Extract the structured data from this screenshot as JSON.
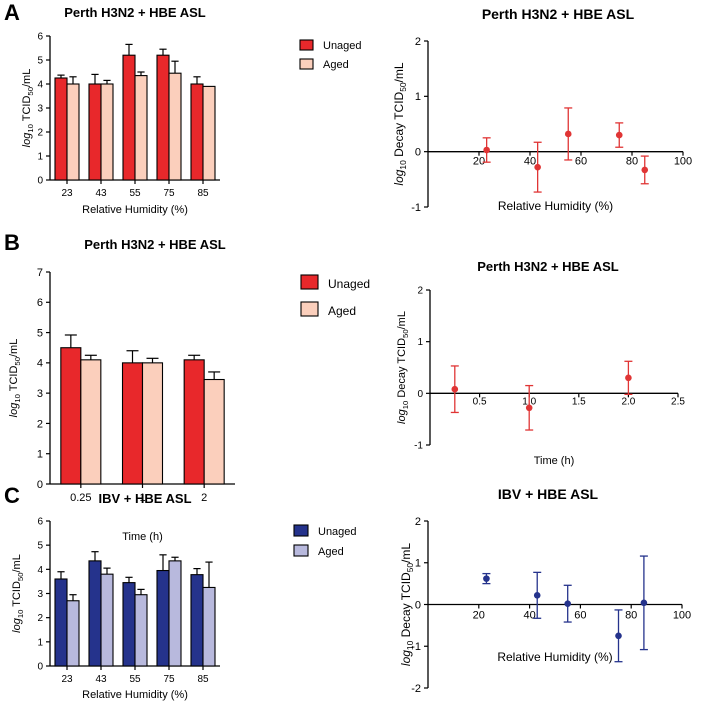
{
  "panel_labels": [
    "A",
    "B",
    "C"
  ],
  "chart_data": [
    {
      "id": "A-bar",
      "type": "bar",
      "title": "Perth H3N2 + HBE ASL",
      "xlabel": "Relative Humidity (%)",
      "ylabel_parts": [
        "log",
        "10",
        " TCID",
        "50",
        "/mL"
      ],
      "categories": [
        "23",
        "43",
        "55",
        "75",
        "85"
      ],
      "ylim": [
        0,
        6
      ],
      "yticks": [
        0,
        1,
        2,
        3,
        4,
        5,
        6
      ],
      "series": [
        {
          "name": "Unaged",
          "color": "#e8282b",
          "values": [
            4.25,
            4.0,
            5.2,
            5.2,
            4.0
          ],
          "errors": [
            0.12,
            0.4,
            0.45,
            0.25,
            0.3
          ]
        },
        {
          "name": "Aged",
          "color": "#fbcfbc",
          "values": [
            4.0,
            4.0,
            4.35,
            4.45,
            3.9
          ],
          "errors": [
            0.3,
            0.15,
            0.15,
            0.5,
            0.0
          ]
        }
      ]
    },
    {
      "id": "A-scatter",
      "type": "scatter",
      "title": "Perth H3N2 + HBE ASL",
      "xlabel": "Relative Humidity (%)",
      "ylabel_parts": [
        "log",
        "10",
        " Decay TCID",
        "50",
        "/mL"
      ],
      "xlim": [
        0,
        100
      ],
      "xticks": [
        20,
        40,
        60,
        80,
        100
      ],
      "ylim": [
        -1,
        2
      ],
      "yticks": [
        -1,
        0,
        1,
        2
      ],
      "color": "#e03535",
      "points": [
        {
          "x": 23,
          "y": 0.03,
          "err": 0.22
        },
        {
          "x": 43,
          "y": -0.28,
          "err": 0.45
        },
        {
          "x": 55,
          "y": 0.32,
          "err": 0.47
        },
        {
          "x": 75,
          "y": 0.3,
          "err": 0.22
        },
        {
          "x": 85,
          "y": -0.33,
          "err": 0.25
        }
      ]
    },
    {
      "id": "B-bar",
      "type": "bar",
      "title": "Perth H3N2 + HBE ASL",
      "xlabel": "Time (h)",
      "ylabel_parts": [
        "log",
        "10",
        " TCID",
        "50",
        "/mL"
      ],
      "categories": [
        "0.25",
        "1",
        "2"
      ],
      "ylim": [
        0,
        7
      ],
      "yticks": [
        0,
        1,
        2,
        3,
        4,
        5,
        6,
        7
      ],
      "series": [
        {
          "name": "Unaged",
          "color": "#e8282b",
          "values": [
            4.5,
            4.0,
            4.1
          ],
          "errors": [
            0.42,
            0.4,
            0.15
          ]
        },
        {
          "name": "Aged",
          "color": "#fbcfbc",
          "values": [
            4.1,
            4.0,
            3.45
          ],
          "errors": [
            0.15,
            0.15,
            0.25
          ]
        }
      ]
    },
    {
      "id": "B-scatter",
      "type": "scatter",
      "title": "Perth H3N2 + HBE ASL",
      "xlabel": "Time (h)",
      "ylabel_parts": [
        "log",
        "10",
        " Decay TCID",
        "50",
        "/mL"
      ],
      "xlim": [
        0,
        2.5
      ],
      "xticks": [
        0.5,
        1.0,
        1.5,
        2.0,
        2.5
      ],
      "ylim": [
        -1,
        2
      ],
      "yticks": [
        -1,
        0,
        1,
        2
      ],
      "color": "#e03535",
      "points": [
        {
          "x": 0.25,
          "y": 0.08,
          "err": 0.45
        },
        {
          "x": 1.0,
          "y": -0.28,
          "err": 0.43
        },
        {
          "x": 2.0,
          "y": 0.3,
          "err": 0.32
        }
      ]
    },
    {
      "id": "C-bar",
      "type": "bar",
      "title": "IBV + HBE ASL",
      "xlabel": "Relative Humidity (%)",
      "ylabel_parts": [
        "log",
        "10",
        " TCID",
        "50",
        "/mL"
      ],
      "categories": [
        "23",
        "43",
        "55",
        "75",
        "85"
      ],
      "ylim": [
        0,
        6
      ],
      "yticks": [
        0,
        1,
        2,
        3,
        4,
        5,
        6
      ],
      "series": [
        {
          "name": "Unaged",
          "color": "#25338c",
          "values": [
            3.6,
            4.35,
            3.45,
            3.95,
            3.78
          ],
          "errors": [
            0.3,
            0.38,
            0.22,
            0.65,
            0.25
          ]
        },
        {
          "name": "Aged",
          "color": "#b8b9dd",
          "values": [
            2.7,
            3.8,
            2.95,
            4.35,
            3.25
          ],
          "errors": [
            0.25,
            0.25,
            0.22,
            0.15,
            1.05
          ]
        }
      ]
    },
    {
      "id": "C-scatter",
      "type": "scatter",
      "title": "IBV + HBE ASL",
      "xlabel": "Relative Humidity (%)",
      "ylabel_parts": [
        "log",
        "10",
        " Decay TCID",
        "50",
        "/mL"
      ],
      "xlim": [
        0,
        100
      ],
      "xticks": [
        20,
        40,
        60,
        80,
        100
      ],
      "ylim": [
        -2,
        2
      ],
      "yticks": [
        -2,
        -1,
        0,
        1,
        2
      ],
      "color": "#25338c",
      "points": [
        {
          "x": 23,
          "y": 0.62,
          "err": 0.12
        },
        {
          "x": 43,
          "y": 0.22,
          "err": 0.55
        },
        {
          "x": 55,
          "y": 0.02,
          "err": 0.44
        },
        {
          "x": 75,
          "y": -0.75,
          "err": 0.62
        },
        {
          "x": 85,
          "y": 0.04,
          "err": 1.12
        }
      ]
    }
  ]
}
